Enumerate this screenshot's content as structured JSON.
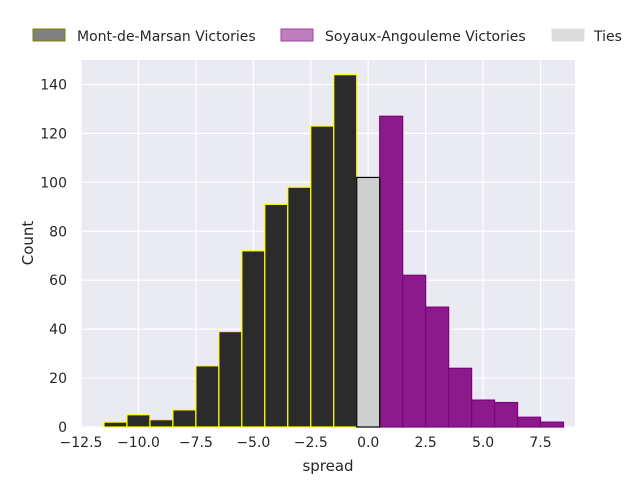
{
  "chart_data": {
    "type": "bar",
    "xlabel": "spread",
    "ylabel": "Count",
    "xlim": [
      -12.5,
      9.0
    ],
    "ylim": [
      0,
      150
    ],
    "grid": true,
    "legend_position": "top",
    "xticks": [
      -12.5,
      -10.0,
      -7.5,
      -5.0,
      -2.5,
      0.0,
      2.5,
      5.0,
      7.5
    ],
    "xtick_labels": [
      "−12.5",
      "−10.0",
      "−7.5",
      "−5.0",
      "−2.5",
      "0.0",
      "2.5",
      "5.0",
      "7.5"
    ],
    "yticks": [
      0,
      20,
      40,
      60,
      80,
      100,
      120,
      140
    ],
    "ytick_labels": [
      "0",
      "20",
      "40",
      "60",
      "80",
      "100",
      "120",
      "140"
    ],
    "bin_width": 1,
    "series": [
      {
        "name": "Mont-de-Marsan Victories",
        "fill": "#2b2b2b",
        "edge": "#ffff00",
        "legend_fill": "#808080",
        "legend_edge": "#808000",
        "x": [
          -11,
          -10,
          -9,
          -8,
          -7,
          -6,
          -5,
          -4,
          -3,
          -2,
          -1
        ],
        "values": [
          2,
          5,
          3,
          7,
          25,
          39,
          72,
          91,
          98,
          123,
          144
        ]
      },
      {
        "name": "Soyaux-Angouleme Victories",
        "fill": "#8b1a8b",
        "edge": "#800080",
        "legend_fill": "#bf7fbf",
        "legend_edge": "#a040a0",
        "x": [
          1,
          2,
          3,
          4,
          5,
          6,
          7,
          8
        ],
        "values": [
          127,
          62,
          49,
          24,
          11,
          10,
          4,
          2
        ]
      },
      {
        "name": "Ties",
        "fill": "#cfcfcf",
        "edge": "#000000",
        "legend_fill": "#dcdcdc",
        "legend_edge": "#dcdcdc",
        "x": [
          0
        ],
        "values": [
          102
        ]
      }
    ]
  }
}
